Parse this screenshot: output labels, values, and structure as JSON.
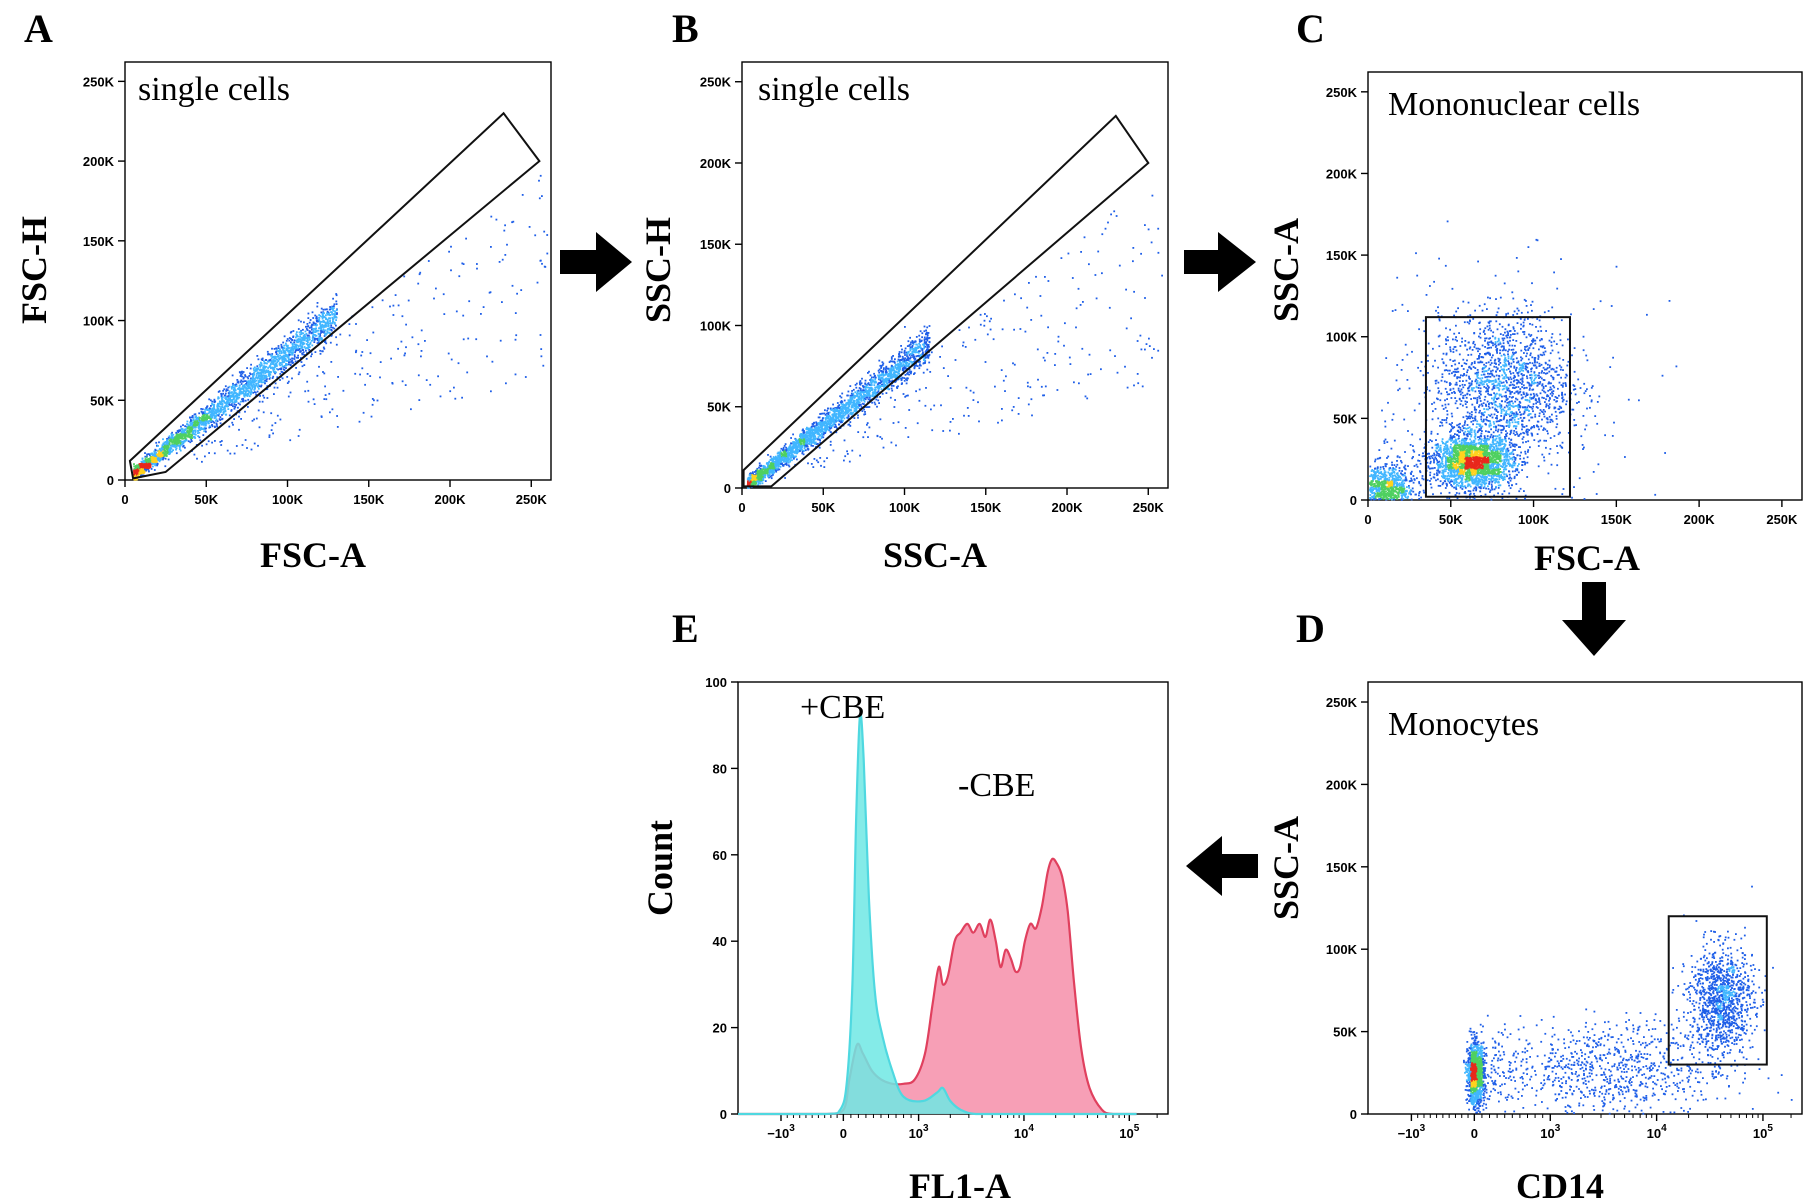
{
  "colors": {
    "dot_blue": "#1f5fe8",
    "dot_light": "#41b6ff",
    "dot_green": "#4fd060",
    "dot_yellow": "#ffd21f",
    "dot_red": "#e8281c",
    "hist_cyan": "#6fe7e4",
    "hist_cyan_line": "#4fd8e0",
    "hist_pink": "#f47a9a",
    "hist_pink_line": "#e0405e"
  },
  "chart_data": [
    {
      "id": "A",
      "type": "scatter",
      "panel_letter": "A",
      "gate_label": "single cells",
      "xlabel": "FSC-A",
      "ylabel": "FSC-H",
      "xlim": [
        0,
        262144
      ],
      "ylim": [
        0,
        262144
      ],
      "x_ticks": [
        {
          "v": 0,
          "label": "0"
        },
        {
          "v": 50000,
          "label": "50K"
        },
        {
          "v": 100000,
          "label": "100K"
        },
        {
          "v": 150000,
          "label": "150K"
        },
        {
          "v": 200000,
          "label": "200K"
        },
        {
          "v": 250000,
          "label": "250K"
        }
      ],
      "y_ticks": [
        {
          "v": 0,
          "label": "0"
        },
        {
          "v": 50000,
          "label": "50K"
        },
        {
          "v": 100000,
          "label": "100K"
        },
        {
          "v": 150000,
          "label": "150K"
        },
        {
          "v": 200000,
          "label": "200K"
        },
        {
          "v": 250000,
          "label": "250K"
        }
      ],
      "gate_polygon": [
        [
          3000,
          12000
        ],
        [
          5000,
          1000
        ],
        [
          25000,
          5000
        ],
        [
          255000,
          200000
        ],
        [
          233000,
          230000
        ]
      ],
      "population": {
        "kind": "diagonal",
        "x_start": 5000,
        "x_end": 130000,
        "slope": 0.8,
        "spread": 4000
      }
    },
    {
      "id": "B",
      "type": "scatter",
      "panel_letter": "B",
      "gate_label": "single cells",
      "xlabel": "SSC-A",
      "ylabel": "SSC-H",
      "xlim": [
        0,
        262144
      ],
      "ylim": [
        0,
        262144
      ],
      "x_ticks": [
        {
          "v": 0,
          "label": "0"
        },
        {
          "v": 50000,
          "label": "50K"
        },
        {
          "v": 100000,
          "label": "100K"
        },
        {
          "v": 150000,
          "label": "150K"
        },
        {
          "v": 200000,
          "label": "200K"
        },
        {
          "v": 250000,
          "label": "250K"
        }
      ],
      "y_ticks": [
        {
          "v": 0,
          "label": "0"
        },
        {
          "v": 50000,
          "label": "50K"
        },
        {
          "v": 100000,
          "label": "100K"
        },
        {
          "v": 150000,
          "label": "150K"
        },
        {
          "v": 200000,
          "label": "200K"
        },
        {
          "v": 250000,
          "label": "250K"
        }
      ],
      "gate_polygon": [
        [
          1000,
          11000
        ],
        [
          1000,
          1000
        ],
        [
          18000,
          1000
        ],
        [
          250000,
          200000
        ],
        [
          230000,
          229000
        ]
      ],
      "population": {
        "kind": "diagonal",
        "x_start": 3000,
        "x_end": 115000,
        "slope": 0.78,
        "spread": 3500
      }
    },
    {
      "id": "C",
      "type": "scatter",
      "panel_letter": "C",
      "gate_label": "Mononuclear cells",
      "xlabel": "FSC-A",
      "ylabel": "SSC-A",
      "xlim": [
        0,
        262144
      ],
      "ylim": [
        0,
        262144
      ],
      "x_ticks": [
        {
          "v": 0,
          "label": "0"
        },
        {
          "v": 50000,
          "label": "50K"
        },
        {
          "v": 100000,
          "label": "100K"
        },
        {
          "v": 150000,
          "label": "150K"
        },
        {
          "v": 200000,
          "label": "200K"
        },
        {
          "v": 250000,
          "label": "250K"
        }
      ],
      "y_ticks": [
        {
          "v": 0,
          "label": "0"
        },
        {
          "v": 50000,
          "label": "50K"
        },
        {
          "v": 100000,
          "label": "100K"
        },
        {
          "v": 150000,
          "label": "150K"
        },
        {
          "v": 200000,
          "label": "200K"
        },
        {
          "v": 250000,
          "label": "250K"
        }
      ],
      "gate_rect": [
        35000,
        2000,
        122000,
        112000
      ],
      "population": {
        "kind": "clusters",
        "clusters": [
          {
            "cx": 63000,
            "cy": 24000,
            "sx": 12000,
            "sy": 8000,
            "n": 2200
          },
          {
            "cx": 82000,
            "cy": 70000,
            "sx": 20000,
            "sy": 22000,
            "n": 1600
          },
          {
            "cx": 10000,
            "cy": 8000,
            "sx": 9000,
            "sy": 7000,
            "n": 800
          },
          {
            "cx": 70000,
            "cy": 60000,
            "sx": 45000,
            "sy": 45000,
            "n": 250
          }
        ]
      }
    },
    {
      "id": "D",
      "type": "scatter",
      "panel_letter": "D",
      "gate_label": "Monocytes",
      "xlabel": "CD14",
      "ylabel": "SSC-A",
      "x_scale": "biexponential",
      "ylim": [
        0,
        262144
      ],
      "x_ticks": [
        {
          "v": -1000,
          "label": "−10",
          "sup": "3"
        },
        {
          "v": 0,
          "label": "0"
        },
        {
          "v": 1000,
          "label": "10",
          "sup": "3"
        },
        {
          "v": 10000,
          "label": "10",
          "sup": "4"
        },
        {
          "v": 100000,
          "label": "10",
          "sup": "5"
        }
      ],
      "y_ticks": [
        {
          "v": 0,
          "label": "0"
        },
        {
          "v": 50000,
          "label": "50K"
        },
        {
          "v": 100000,
          "label": "100K"
        },
        {
          "v": 150000,
          "label": "150K"
        },
        {
          "v": 200000,
          "label": "200K"
        },
        {
          "v": 250000,
          "label": "250K"
        }
      ],
      "gate_rect": [
        13000,
        30000,
        110000,
        120000
      ],
      "population": {
        "kind": "clusters",
        "clusters": [
          {
            "cx": 0,
            "cy": 25000,
            "sx": 60,
            "sy": 9000,
            "n": 1200,
            "scale": "linear"
          },
          {
            "cx": 40000,
            "cy": 70000,
            "sx": 0.15,
            "sy": 16000,
            "n": 1100,
            "scale": "log"
          },
          {
            "cx": 3000,
            "cy": 28000,
            "sx": 0.6,
            "sy": 14000,
            "n": 900,
            "scale": "log"
          }
        ]
      }
    },
    {
      "id": "E",
      "type": "area",
      "panel_letter": "E",
      "xlabel": "FL1-A",
      "ylabel": "Count",
      "x_scale": "biexponential",
      "ylim": [
        0,
        100
      ],
      "x_ticks": [
        {
          "v": -1000,
          "label": "−10",
          "sup": "3"
        },
        {
          "v": 0,
          "label": "0"
        },
        {
          "v": 1000,
          "label": "10",
          "sup": "3"
        },
        {
          "v": 10000,
          "label": "10",
          "sup": "4"
        },
        {
          "v": 100000,
          "label": "10",
          "sup": "5"
        }
      ],
      "y_ticks": [
        {
          "v": 0,
          "label": "0"
        },
        {
          "v": 20,
          "label": "20"
        },
        {
          "v": 40,
          "label": "40"
        },
        {
          "v": 60,
          "label": "60"
        },
        {
          "v": 80,
          "label": "80"
        },
        {
          "v": 100,
          "label": "100"
        }
      ],
      "series": [
        {
          "name": "+CBE",
          "points": [
            [
              -1500,
              0
            ],
            [
              -300,
              0
            ],
            [
              -50,
              1
            ],
            [
              50,
              8
            ],
            [
              120,
              30
            ],
            [
              170,
              68
            ],
            [
              220,
              92
            ],
            [
              270,
              82
            ],
            [
              340,
              50
            ],
            [
              420,
              28
            ],
            [
              520,
              18
            ],
            [
              650,
              10
            ],
            [
              800,
              4
            ],
            [
              1100,
              3
            ],
            [
              1500,
              5
            ],
            [
              1700,
              6
            ],
            [
              2000,
              3
            ],
            [
              2500,
              1
            ],
            [
              3500,
              0
            ],
            [
              8000,
              0
            ],
            [
              20000,
              0
            ],
            [
              60000,
              0
            ],
            [
              120000,
              0
            ]
          ]
        },
        {
          "name": "-CBE",
          "points": [
            [
              -1500,
              0
            ],
            [
              -300,
              0
            ],
            [
              0,
              1
            ],
            [
              80,
              8
            ],
            [
              180,
              16
            ],
            [
              260,
              14
            ],
            [
              380,
              10
            ],
            [
              500,
              8
            ],
            [
              650,
              7
            ],
            [
              800,
              7
            ],
            [
              950,
              8
            ],
            [
              1150,
              14
            ],
            [
              1350,
              25
            ],
            [
              1550,
              34
            ],
            [
              1700,
              30
            ],
            [
              1900,
              32
            ],
            [
              2200,
              40
            ],
            [
              2500,
              42
            ],
            [
              2900,
              44
            ],
            [
              3300,
              42
            ],
            [
              3800,
              44
            ],
            [
              4300,
              41
            ],
            [
              4800,
              45
            ],
            [
              5400,
              40
            ],
            [
              6000,
              34
            ],
            [
              6700,
              38
            ],
            [
              7500,
              36
            ],
            [
              8300,
              33
            ],
            [
              9200,
              34
            ],
            [
              10200,
              40
            ],
            [
              11500,
              44
            ],
            [
              13000,
              43
            ],
            [
              14800,
              48
            ],
            [
              16800,
              56
            ],
            [
              18500,
              59
            ],
            [
              20500,
              58
            ],
            [
              23000,
              55
            ],
            [
              26000,
              47
            ],
            [
              30000,
              30
            ],
            [
              35000,
              15
            ],
            [
              42000,
              6
            ],
            [
              55000,
              1
            ],
            [
              70000,
              0
            ],
            [
              120000,
              0
            ]
          ]
        }
      ]
    }
  ]
}
